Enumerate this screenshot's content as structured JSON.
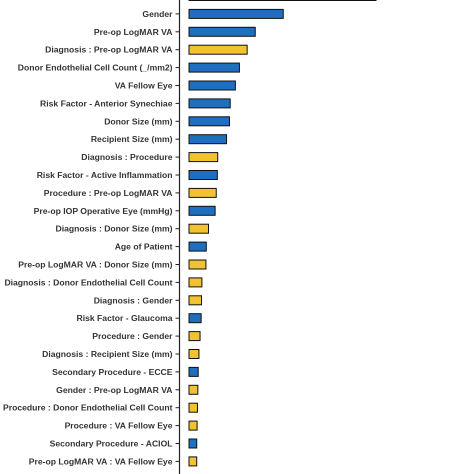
{
  "colors": {
    "main_effect": "#1f6fc0",
    "interaction": "#f1c232",
    "outline": "#111111",
    "label": "#333333",
    "axis": "#222222"
  },
  "chart_data": {
    "type": "bar",
    "orientation": "horizontal",
    "title": "",
    "xlabel": "",
    "ylabel": "",
    "xlim": [
      0,
      0.8
    ],
    "grid": false,
    "legend": "none",
    "categories": [
      "",
      "Gender",
      "Pre-op LogMAR VA",
      "Diagnosis : Pre-op LogMAR VA",
      "Donor Endothelial Cell Count (_/mm2)",
      "VA Fellow Eye",
      "Risk Factor - Anterior Synechiae",
      "Donor Size (mm)",
      "Recipient Size (mm)",
      "Diagnosis : Procedure",
      "Risk Factor - Active Inflammation",
      "Procedure : Pre-op LogMAR VA",
      "Pre-op IOP Operative Eye (mmHg)",
      "Diagnosis : Donor Size (mm)",
      "Age of Patient",
      "Pre-op LogMAR VA : Donor Size (mm)",
      "Diagnosis : Donor Endothelial Cell Count",
      "Diagnosis : Gender",
      "Risk Factor - Glaucoma",
      "Procedure : Gender",
      "Diagnosis : Recipient Size (mm)",
      "Secondary Procedure - ECCE",
      "Gender : Pre-op LogMAR VA",
      "Procedure : Donor Endothelial Cell Count",
      "Procedure : VA Fellow Eye",
      "Secondary Procedure - ACIOL",
      "Pre-op LogMAR VA : VA Fellow Eye"
    ],
    "values": [
      0.508,
      0.256,
      0.18,
      0.158,
      0.137,
      0.126,
      0.112,
      0.11,
      0.102,
      0.078,
      0.077,
      0.074,
      0.071,
      0.053,
      0.047,
      0.046,
      0.035,
      0.034,
      0.033,
      0.03,
      0.027,
      0.025,
      0.024,
      0.023,
      0.022,
      0.021,
      0.021
    ],
    "effect_type": [
      "main",
      "main",
      "main",
      "interaction",
      "main",
      "main",
      "main",
      "main",
      "main",
      "interaction",
      "main",
      "interaction",
      "main",
      "interaction",
      "main",
      "interaction",
      "interaction",
      "interaction",
      "main",
      "interaction",
      "interaction",
      "main",
      "interaction",
      "interaction",
      "interaction",
      "main",
      "interaction"
    ]
  }
}
